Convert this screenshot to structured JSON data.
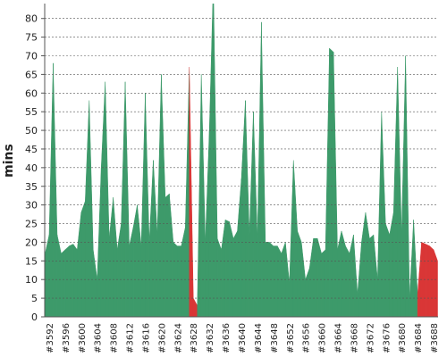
{
  "chart_data": {
    "type": "area",
    "y_label": "mins",
    "categories": [
      null,
      "#3592",
      null,
      null,
      null,
      "#3596",
      null,
      null,
      null,
      "#3600",
      null,
      null,
      null,
      "#3604",
      null,
      null,
      null,
      "#3608",
      null,
      null,
      null,
      "#3612",
      null,
      null,
      null,
      "#3616",
      null,
      null,
      null,
      "#3620",
      null,
      null,
      null,
      "#3624",
      null,
      null,
      null,
      "#3628",
      null,
      null,
      null,
      "#3632",
      null,
      null,
      null,
      "#3636",
      null,
      null,
      null,
      "#3640",
      null,
      null,
      null,
      "#3644",
      null,
      null,
      null,
      "#3648",
      null,
      null,
      null,
      "#3652",
      null,
      null,
      null,
      "#3656",
      null,
      null,
      null,
      "#3660",
      null,
      null,
      null,
      "#3664",
      null,
      null,
      null,
      "#3668",
      null,
      null,
      null,
      "#3672",
      null,
      null,
      null,
      "#3676",
      null,
      null,
      null,
      "#3680",
      null,
      null,
      null,
      "#3684",
      null,
      null,
      null,
      "#3688",
      null
    ],
    "values": [
      17,
      22,
      68,
      22,
      17,
      18,
      19,
      19.5,
      18,
      28,
      31,
      58,
      18,
      10,
      40,
      63,
      21,
      32,
      18,
      25,
      63,
      19,
      24,
      30,
      19,
      60,
      20,
      42,
      22,
      65,
      32,
      33,
      20,
      19,
      19,
      24,
      67,
      5,
      3,
      65,
      20,
      50,
      90,
      21,
      18,
      26,
      25.5,
      21,
      23,
      37,
      58,
      22,
      55,
      21,
      79,
      20,
      20,
      19,
      19,
      17,
      20,
      9,
      42,
      23,
      20,
      10,
      13,
      21,
      21,
      17,
      18,
      72,
      71,
      18,
      23,
      19,
      17,
      22,
      6,
      20,
      28,
      21,
      22,
      10,
      55,
      25,
      22,
      28,
      67,
      22,
      70,
      5,
      26,
      6,
      20,
      19.5,
      19,
      18,
      15
    ],
    "success_color": "#3d9a6a",
    "failure_color": "#d93636",
    "failed": [
      37,
      38,
      94,
      95,
      96,
      97,
      98
    ],
    "ylim": [
      0,
      84
    ],
    "yticks": [
      0,
      5,
      10,
      15,
      20,
      25,
      30,
      35,
      40,
      45,
      50,
      55,
      60,
      65,
      70,
      75,
      80
    ],
    "grid": true
  }
}
